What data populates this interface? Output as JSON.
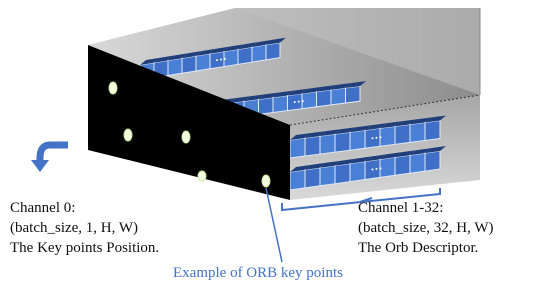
{
  "left_label": {
    "line1": "Channel 0:",
    "line2": "(batch_size, 1, H, W)",
    "line3": "The Key points Position."
  },
  "right_label": {
    "line1": "Channel 1-32:",
    "line2": "(batch_size, 32, H, W)",
    "line3": "The Orb Descriptor."
  },
  "caption": "Example of ORB key points"
}
